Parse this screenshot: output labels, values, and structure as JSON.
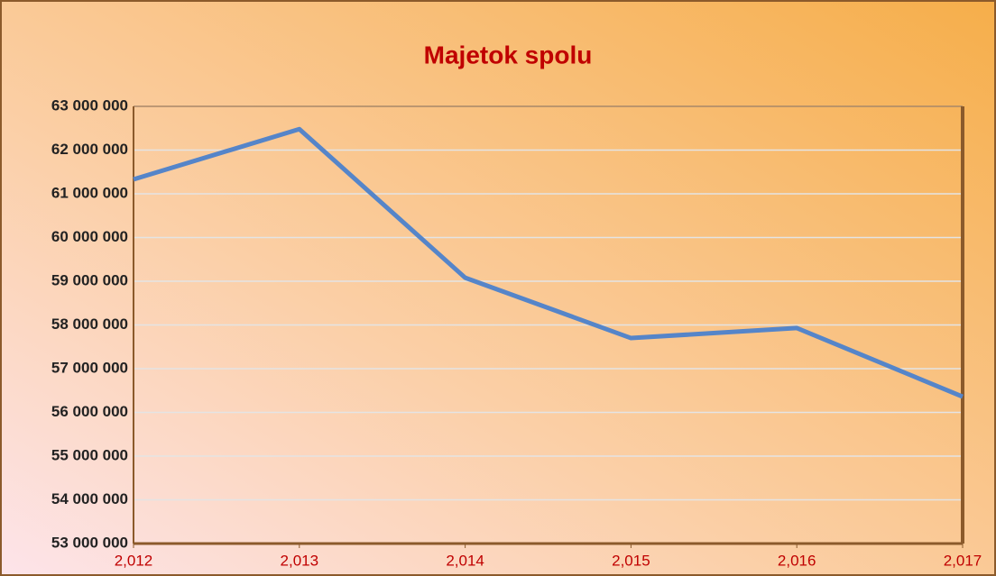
{
  "chart_data": {
    "type": "line",
    "title": "Majetok spolu",
    "x": [
      2012,
      2013,
      2014,
      2015,
      2016,
      2017
    ],
    "xlim": [
      2012,
      2017
    ],
    "xticks": [
      {
        "value": 2012,
        "label": "2,012"
      },
      {
        "value": 2013,
        "label": "2,013"
      },
      {
        "value": 2014,
        "label": "2,014"
      },
      {
        "value": 2015,
        "label": "2,015"
      },
      {
        "value": 2016,
        "label": "2,016"
      },
      {
        "value": 2017,
        "label": "2,017"
      }
    ],
    "series": [
      {
        "color": "#5585c9",
        "values": [
          61330000,
          62480000,
          59080000,
          57700000,
          57930000,
          56360000
        ]
      }
    ],
    "ylim": [
      53000000,
      63000000
    ],
    "yticks": [
      {
        "value": 53000000,
        "label": "53 000 000"
      },
      {
        "value": 54000000,
        "label": "54 000 000"
      },
      {
        "value": 55000000,
        "label": "55 000 000"
      },
      {
        "value": 56000000,
        "label": "56 000 000"
      },
      {
        "value": 57000000,
        "label": "57 000 000"
      },
      {
        "value": 58000000,
        "label": "58 000 000"
      },
      {
        "value": 59000000,
        "label": "59 000 000"
      },
      {
        "value": 60000000,
        "label": "60 000 000"
      },
      {
        "value": 61000000,
        "label": "61 000 000"
      },
      {
        "value": 62000000,
        "label": "62 000 000"
      },
      {
        "value": 63000000,
        "label": "63 000 000"
      }
    ],
    "grid": true
  }
}
